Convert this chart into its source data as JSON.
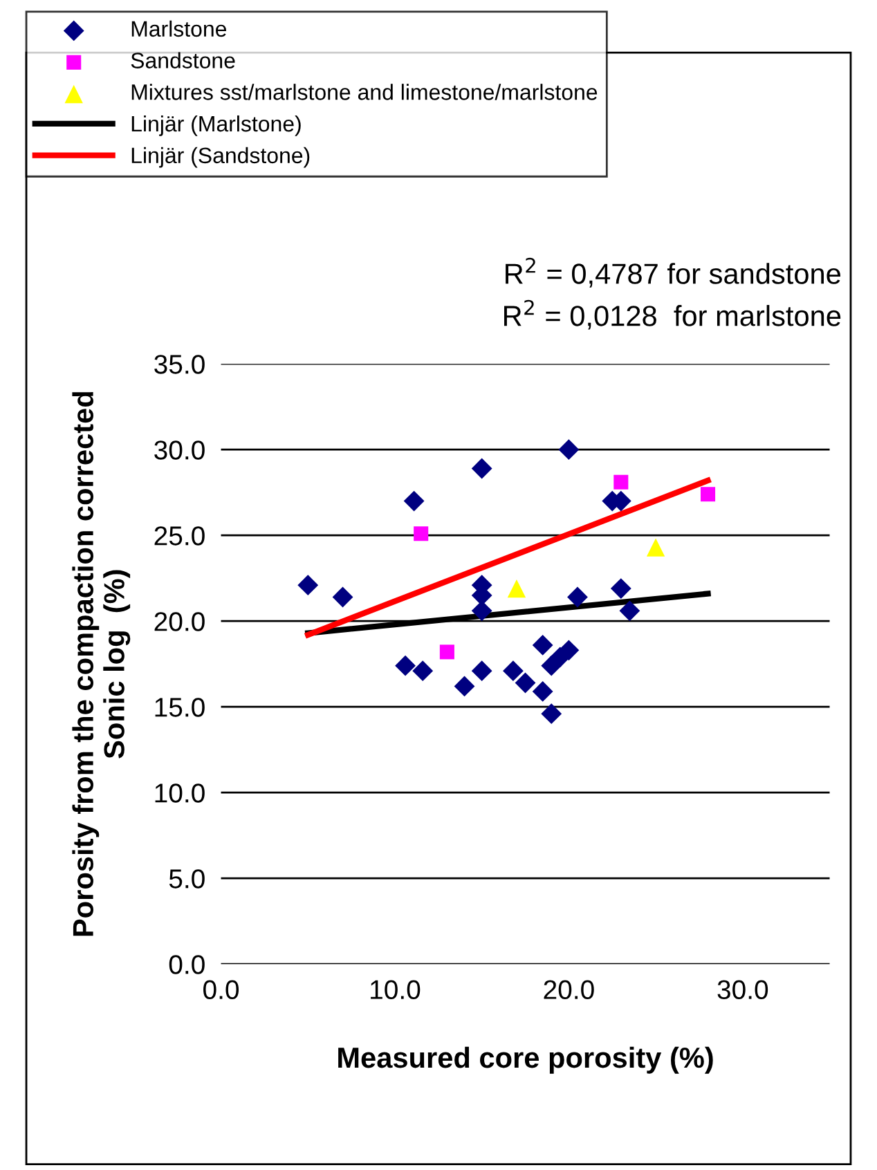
{
  "chart_data": {
    "type": "scatter",
    "xlabel": "Measured core porosity (%)",
    "ylabel": "Porosity from the compaction corrected\nSonic log  (%)",
    "annotations": [
      "R$^{2}$ = 0,4787 for sandstone",
      "R$^{2}$ = 0,0128  for marlstone"
    ],
    "xlim": [
      0,
      35
    ],
    "xticks": [
      {
        "value": 0,
        "label": "0.0"
      },
      {
        "value": 10,
        "label": "10.0"
      },
      {
        "value": 20,
        "label": "20.0"
      },
      {
        "value": 30,
        "label": "30.0"
      }
    ],
    "ylim": [
      0,
      35
    ],
    "yticks": [
      {
        "value": 0,
        "label": "0.0"
      },
      {
        "value": 5,
        "label": "5.0"
      },
      {
        "value": 10,
        "label": "10.0"
      },
      {
        "value": 15,
        "label": "15.0"
      },
      {
        "value": 20,
        "label": "20.0"
      },
      {
        "value": 25,
        "label": "25.0"
      },
      {
        "value": 30,
        "label": "30.0"
      },
      {
        "value": 35,
        "label": "35.0"
      }
    ],
    "grid": "y",
    "legend": "top",
    "series": [
      {
        "name": "Marlstone",
        "color": "#000080",
        "marker": "diamond",
        "x": [
          5,
          7,
          10.6,
          11.1,
          11.6,
          14,
          15,
          15,
          15,
          15,
          15,
          16.8,
          17.5,
          18.5,
          18.5,
          19,
          19,
          19.5,
          20,
          20,
          20.5,
          22.5,
          23,
          23,
          23.5
        ],
        "values": [
          22.1,
          21.4,
          17.4,
          27,
          17.1,
          16.2,
          28.9,
          22.1,
          21.5,
          20.6,
          17.1,
          17.1,
          16.4,
          18.6,
          15.9,
          14.6,
          17.4,
          17.9,
          18.3,
          30,
          21.4,
          27,
          27,
          21.9,
          20.6
        ]
      },
      {
        "name": "Sandstone",
        "color": "#ff00ff",
        "marker": "square",
        "x": [
          11.5,
          13,
          23,
          28
        ],
        "values": [
          25.1,
          18.2,
          28.1,
          27.4
        ]
      },
      {
        "name": "Mixtures sst/marlstone and limestone/marlstone",
        "color": "#ffff00",
        "marker": "triangle",
        "x": [
          17,
          25
        ],
        "values": [
          21.9,
          24.3
        ]
      },
      {
        "name": "Linjär (Marlstone)",
        "type": "line",
        "color": "#000000",
        "x": [
          5,
          28
        ],
        "values": [
          19.3,
          21.6
        ]
      },
      {
        "name": "Linjär (Sandstone)",
        "type": "line",
        "color": "#ff0000",
        "x": [
          5,
          28
        ],
        "values": [
          19.2,
          28.2
        ]
      }
    ]
  }
}
